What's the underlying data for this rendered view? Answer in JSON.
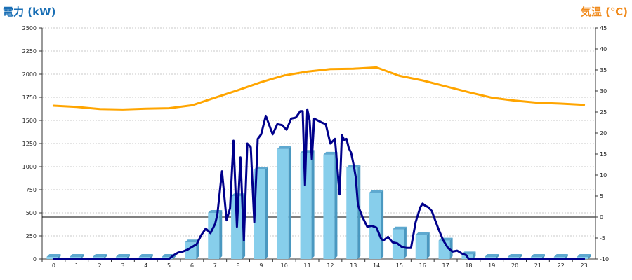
{
  "chart_data": {
    "type": "bar",
    "left_axis_label": "電力 (kW)",
    "right_axis_label": "気温 (℃)",
    "left_ylim": [
      0,
      2500
    ],
    "left_ticks": [
      "0",
      "250",
      "500",
      "750",
      "1000",
      "1250",
      "1500",
      "1750",
      "2000",
      "2250",
      "2500"
    ],
    "right_ylim": [
      -10,
      45
    ],
    "right_ticks": [
      "-10",
      "-5",
      "0",
      "5",
      "10",
      "15",
      "20",
      "25",
      "30",
      "35",
      "40",
      "45"
    ],
    "categories": [
      "0",
      "1",
      "2",
      "3",
      "4",
      "5",
      "6",
      "7",
      "8",
      "9",
      "10",
      "11",
      "12",
      "13",
      "14",
      "15",
      "16",
      "17",
      "18",
      "19",
      "20",
      "21",
      "22",
      "23"
    ],
    "grid": "horizontal dotted",
    "reference_line": {
      "axis": "right",
      "value": 0
    },
    "colors": {
      "bar_front": "#87ceeb",
      "bar_side": "#4a98c0",
      "bar_top": "#5ea9d0",
      "power_line": "#00008b",
      "temp_line": "#ffa500",
      "left_title": "#1a6fb5",
      "right_title": "#f08a1c"
    },
    "series": [
      {
        "type": "bar",
        "axis": "left",
        "values": [
          0,
          0,
          0,
          0,
          0,
          0,
          180,
          500,
          680,
          970,
          1190,
          1150,
          1130,
          990,
          720,
          320,
          260,
          200,
          50,
          0,
          0,
          0,
          0,
          0
        ]
      },
      {
        "type": "line",
        "axis": "left",
        "x": [
          0,
          1,
          2,
          3,
          4,
          5,
          5.2,
          5.4,
          5.6,
          5.8,
          6.0,
          6.2,
          6.4,
          6.6,
          6.8,
          7.0,
          7.1,
          7.3,
          7.5,
          7.65,
          7.8,
          7.95,
          8.1,
          8.25,
          8.4,
          8.55,
          8.7,
          8.85,
          9.0,
          9.2,
          9.35,
          9.5,
          9.7,
          9.9,
          10.1,
          10.3,
          10.5,
          10.7,
          10.8,
          10.9,
          11.0,
          11.1,
          11.2,
          11.3,
          11.45,
          11.6,
          11.8,
          12.0,
          12.2,
          12.4,
          12.5,
          12.6,
          12.7,
          12.8,
          12.9,
          13.0,
          13.1,
          13.2,
          13.4,
          13.6,
          13.8,
          14.0,
          14.1,
          14.2,
          14.3,
          14.5,
          14.7,
          14.9,
          15.1,
          15.3,
          15.5,
          15.7,
          15.9,
          16.0,
          16.1,
          16.25,
          16.4,
          16.5,
          16.7,
          16.9,
          17.1,
          17.3,
          17.5,
          17.7,
          17.9,
          18.0,
          18.2,
          18.5,
          19,
          20,
          21,
          22,
          23
        ],
        "values": [
          0,
          0,
          0,
          0,
          0,
          0,
          40,
          70,
          80,
          100,
          130,
          160,
          260,
          330,
          280,
          380,
          480,
          950,
          420,
          550,
          1280,
          350,
          1100,
          200,
          1250,
          1210,
          400,
          1300,
          1350,
          1550,
          1450,
          1350,
          1460,
          1450,
          1400,
          1520,
          1530,
          1600,
          1600,
          800,
          1620,
          1500,
          1080,
          1520,
          1500,
          1480,
          1460,
          1250,
          1300,
          700,
          1340,
          1290,
          1300,
          1200,
          1150,
          1030,
          890,
          580,
          450,
          350,
          360,
          340,
          280,
          220,
          200,
          240,
          180,
          170,
          130,
          120,
          120,
          400,
          560,
          600,
          580,
          560,
          520,
          450,
          320,
          200,
          120,
          80,
          90,
          60,
          40,
          0,
          0,
          0,
          0,
          0,
          0,
          0,
          0
        ]
      },
      {
        "type": "line",
        "axis": "right",
        "x": [
          0,
          1,
          2,
          3,
          4,
          5,
          6,
          7,
          8,
          9,
          10,
          11,
          12,
          13,
          14,
          15,
          16,
          17,
          18,
          19,
          20,
          21,
          22,
          23
        ],
        "values": [
          26.5,
          26.2,
          25.7,
          25.6,
          25.8,
          25.9,
          26.6,
          28.4,
          30.2,
          32.1,
          33.7,
          34.6,
          35.2,
          35.3,
          35.6,
          33.6,
          32.5,
          31.1,
          29.7,
          28.4,
          27.7,
          27.2,
          27.0,
          26.7
        ]
      }
    ]
  }
}
